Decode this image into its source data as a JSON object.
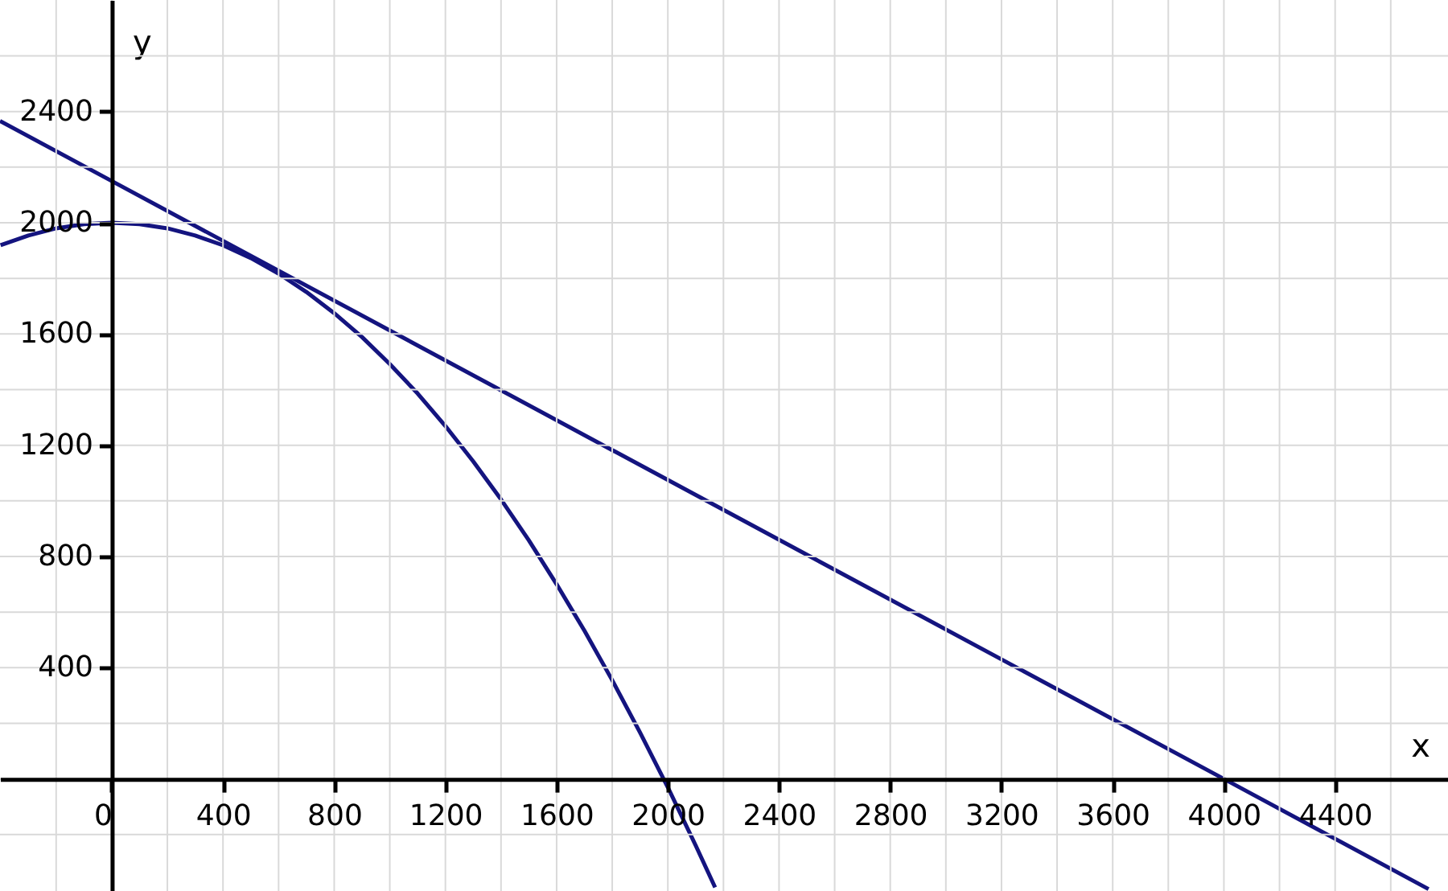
{
  "chart_data": {
    "type": "line",
    "xlabel": "x",
    "ylabel": "y",
    "xlim": [
      -402,
      4806
    ],
    "ylim": [
      -403,
      2801
    ],
    "xticks": [
      {
        "value": -200,
        "label": null
      },
      {
        "value": 0,
        "label": "0"
      },
      {
        "value": 200,
        "label": null
      },
      400,
      {
        "value": 600,
        "label": null
      },
      800,
      {
        "value": 1000,
        "label": null
      },
      1200,
      {
        "value": 1400,
        "label": null
      },
      1600,
      {
        "value": 1800,
        "label": null
      },
      2000,
      {
        "value": 2200,
        "label": null
      },
      2400,
      {
        "value": 2600,
        "label": null
      },
      2800,
      {
        "value": 3000,
        "label": null
      },
      3200,
      {
        "value": 3400,
        "label": null
      },
      3600,
      {
        "value": 3800,
        "label": null
      },
      4000,
      {
        "value": 4200,
        "label": null
      },
      4400,
      {
        "value": 4600,
        "label": null
      }
    ],
    "yticks": [
      {
        "value": -200,
        "label": null
      },
      {
        "value": 0,
        "label": null
      },
      {
        "value": 200,
        "label": null
      },
      400,
      {
        "value": 600,
        "label": null
      },
      800,
      {
        "value": 1000,
        "label": null
      },
      1200,
      {
        "value": 1400,
        "label": null
      },
      1600,
      {
        "value": 1800,
        "label": null
      },
      2000,
      {
        "value": 2200,
        "label": null
      },
      2400,
      {
        "value": 2600,
        "label": null
      }
    ],
    "grid": true,
    "marker": "none",
    "line_style": "solid",
    "series": [
      {
        "color": "#14147f",
        "x": [
          -400,
          -300,
          -200,
          -100,
          0,
          100,
          200,
          300,
          400,
          500,
          600,
          700,
          800,
          900,
          1000,
          1100,
          1200,
          1300,
          1400,
          1500,
          1600,
          1700,
          1800,
          1900,
          2000,
          2100,
          2170
        ],
        "values": [
          1919,
          1954,
          1980,
          1995,
          2000,
          1995,
          1980,
          1954,
          1919,
          1873,
          1817,
          1751,
          1675,
          1589,
          1492,
          1386,
          1269,
          1142,
          1005,
          858,
          700,
          533,
          355,
          167,
          -30,
          -239,
          -390
        ]
      },
      {
        "color": "#14147f",
        "x": [
          -402,
          0,
          4000,
          4736
        ],
        "values": [
          2366,
          2150,
          0,
          -396
        ]
      }
    ]
  }
}
